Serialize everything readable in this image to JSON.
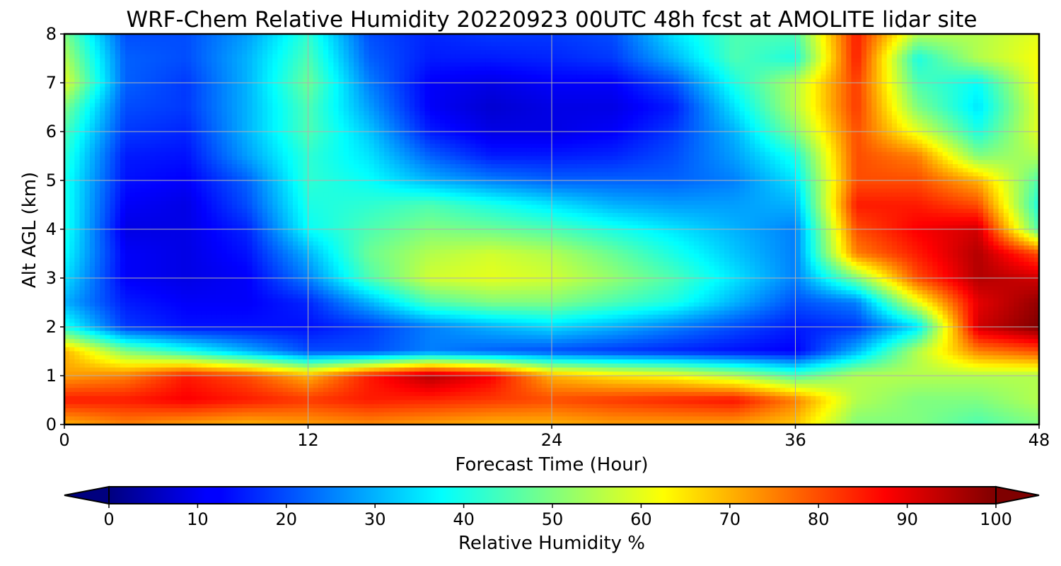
{
  "chart_data": {
    "type": "heatmap",
    "title": "WRF-Chem Relative Humidity 20220923 00UTC 48h fcst at AMOLITE lidar site",
    "xlabel": "Forecast Time (Hour)",
    "ylabel": "Alt AGL (km)",
    "xlim": [
      0,
      48
    ],
    "ylim": [
      0,
      8
    ],
    "x_ticks": [
      0,
      12,
      24,
      36,
      48
    ],
    "y_ticks": [
      0,
      1,
      2,
      3,
      4,
      5,
      6,
      7,
      8
    ],
    "grid": true,
    "colormap": "jet",
    "colorbar": {
      "label": "Relative Humidity %",
      "range": [
        0,
        100
      ],
      "ticks": [
        0,
        10,
        20,
        30,
        40,
        50,
        60,
        70,
        80,
        90,
        100
      ],
      "orientation": "horizontal",
      "extend": "both"
    },
    "x": [
      0,
      3,
      6,
      9,
      12,
      15,
      18,
      21,
      24,
      27,
      30,
      33,
      36,
      39,
      42,
      45,
      48
    ],
    "y": [
      0,
      0.5,
      1,
      1.5,
      2,
      2.5,
      3,
      3.5,
      4,
      4.5,
      5,
      5.5,
      6,
      6.5,
      7,
      7.5,
      8
    ],
    "z": [
      [
        70,
        75,
        72,
        70,
        72,
        74,
        72,
        70,
        70,
        72,
        72,
        72,
        68,
        50,
        50,
        45,
        50
      ],
      [
        85,
        85,
        88,
        85,
        82,
        85,
        84,
        82,
        80,
        82,
        84,
        86,
        75,
        55,
        50,
        50,
        55
      ],
      [
        72,
        75,
        85,
        80,
        70,
        85,
        95,
        88,
        70,
        65,
        62,
        55,
        45,
        55,
        55,
        55,
        55
      ],
      [
        70,
        50,
        40,
        30,
        20,
        20,
        25,
        22,
        20,
        18,
        16,
        14,
        12,
        30,
        55,
        75,
        80
      ],
      [
        40,
        18,
        14,
        14,
        14,
        18,
        25,
        30,
        34,
        30,
        25,
        20,
        15,
        18,
        35,
        92,
        100
      ],
      [
        30,
        15,
        12,
        12,
        16,
        30,
        45,
        50,
        50,
        45,
        40,
        30,
        20,
        25,
        60,
        90,
        98
      ],
      [
        35,
        12,
        10,
        12,
        25,
        45,
        58,
        60,
        58,
        52,
        45,
        35,
        25,
        50,
        80,
        95,
        92
      ],
      [
        38,
        12,
        10,
        14,
        30,
        48,
        55,
        58,
        55,
        48,
        40,
        32,
        25,
        75,
        85,
        95,
        80
      ],
      [
        40,
        10,
        10,
        16,
        38,
        45,
        50,
        48,
        45,
        40,
        35,
        30,
        25,
        80,
        88,
        92,
        45
      ],
      [
        40,
        12,
        10,
        20,
        40,
        42,
        45,
        40,
        35,
        30,
        28,
        28,
        30,
        85,
        85,
        80,
        40
      ],
      [
        40,
        14,
        12,
        22,
        42,
        38,
        30,
        25,
        22,
        22,
        22,
        25,
        35,
        80,
        80,
        70,
        45
      ],
      [
        42,
        15,
        14,
        28,
        42,
        35,
        22,
        15,
        15,
        16,
        20,
        28,
        40,
        80,
        75,
        50,
        55
      ],
      [
        45,
        18,
        16,
        30,
        45,
        32,
        15,
        10,
        10,
        12,
        18,
        30,
        50,
        80,
        60,
        40,
        60
      ],
      [
        50,
        20,
        18,
        30,
        45,
        28,
        12,
        8,
        10,
        10,
        15,
        35,
        55,
        82,
        50,
        35,
        60
      ],
      [
        60,
        22,
        18,
        30,
        48,
        25,
        12,
        10,
        12,
        12,
        20,
        40,
        55,
        82,
        45,
        38,
        62
      ],
      [
        55,
        22,
        20,
        30,
        45,
        22,
        15,
        15,
        16,
        18,
        30,
        45,
        40,
        85,
        40,
        55,
        62
      ],
      [
        50,
        20,
        20,
        28,
        42,
        20,
        16,
        18,
        18,
        20,
        35,
        45,
        45,
        85,
        55,
        55,
        60
      ]
    ]
  }
}
